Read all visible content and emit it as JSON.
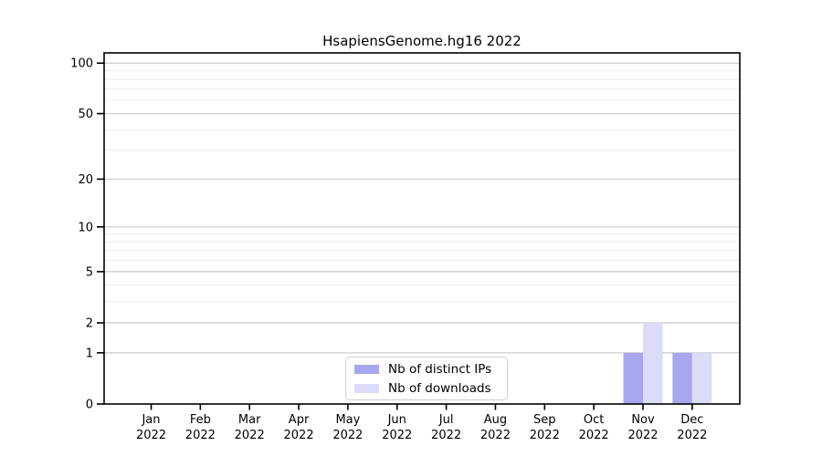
{
  "chart_data": {
    "type": "bar",
    "title": "HsapiensGenome.hg16 2022",
    "categories": [
      "Jan",
      "Feb",
      "Mar",
      "Apr",
      "May",
      "Jun",
      "Jul",
      "Aug",
      "Sep",
      "Oct",
      "Nov",
      "Dec"
    ],
    "x_year": "2022",
    "series": [
      {
        "name": "Nb of distinct IPs",
        "color": "#a7a7f0",
        "values": [
          0,
          0,
          0,
          0,
          0,
          0,
          0,
          0,
          0,
          0,
          1,
          1
        ]
      },
      {
        "name": "Nb of downloads",
        "color": "#dcdcf8",
        "values": [
          0,
          0,
          0,
          0,
          0,
          0,
          0,
          0,
          0,
          0,
          2,
          1
        ]
      }
    ],
    "y_scale": "log1p",
    "y_major_ticks": [
      0,
      1,
      2,
      5,
      10,
      20,
      50,
      100
    ],
    "y_minor_ticks": [
      3,
      4,
      6,
      7,
      8,
      9,
      30,
      40,
      60,
      70,
      80,
      90
    ],
    "ylim": [
      0,
      115
    ],
    "xlabel": "",
    "ylabel": "",
    "grid": "horizontal",
    "legend_position": "lower center",
    "colors": {
      "axis": "#000000",
      "grid_major": "#cccccc",
      "grid_minor": "#ededed",
      "background": "#ffffff"
    }
  }
}
